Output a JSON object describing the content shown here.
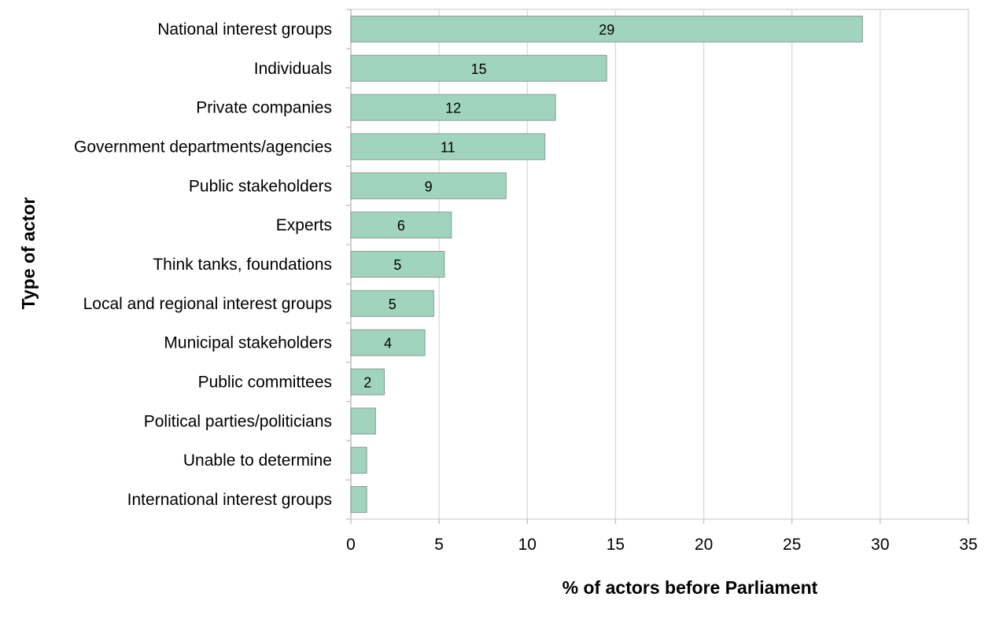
{
  "chart_data": {
    "type": "bar",
    "orientation": "horizontal",
    "xlabel": "% of actors before Parliament",
    "ylabel": "Type of actor",
    "xlim": [
      0,
      35
    ],
    "xticks": [
      "0",
      "5",
      "10",
      "15",
      "20",
      "25",
      "30",
      "35"
    ],
    "grid": "vertical",
    "categories": [
      "National interest groups",
      "Individuals",
      "Private companies",
      "Government departments/agencies",
      "Public stakeholders",
      "Experts",
      "Think tanks, foundations",
      "Local and regional interest groups",
      "Municipal stakeholders",
      "Public committees",
      "Political parties/politicians",
      "Unable to determine",
      "International interest groups"
    ],
    "values": [
      29,
      14.5,
      11.6,
      11,
      8.8,
      5.7,
      5.3,
      4.7,
      4.2,
      1.9,
      1.4,
      0.9,
      0.9
    ],
    "data_labels": [
      "29",
      "15",
      "12",
      "11",
      "9",
      "6",
      "5",
      "5",
      "4",
      "2",
      "",
      "",
      ""
    ],
    "colors": {
      "bar": "#a1d4be",
      "bar_border": "#8a9c94",
      "grid": "#d9d9d9",
      "frame": "#d9d9d9"
    }
  }
}
